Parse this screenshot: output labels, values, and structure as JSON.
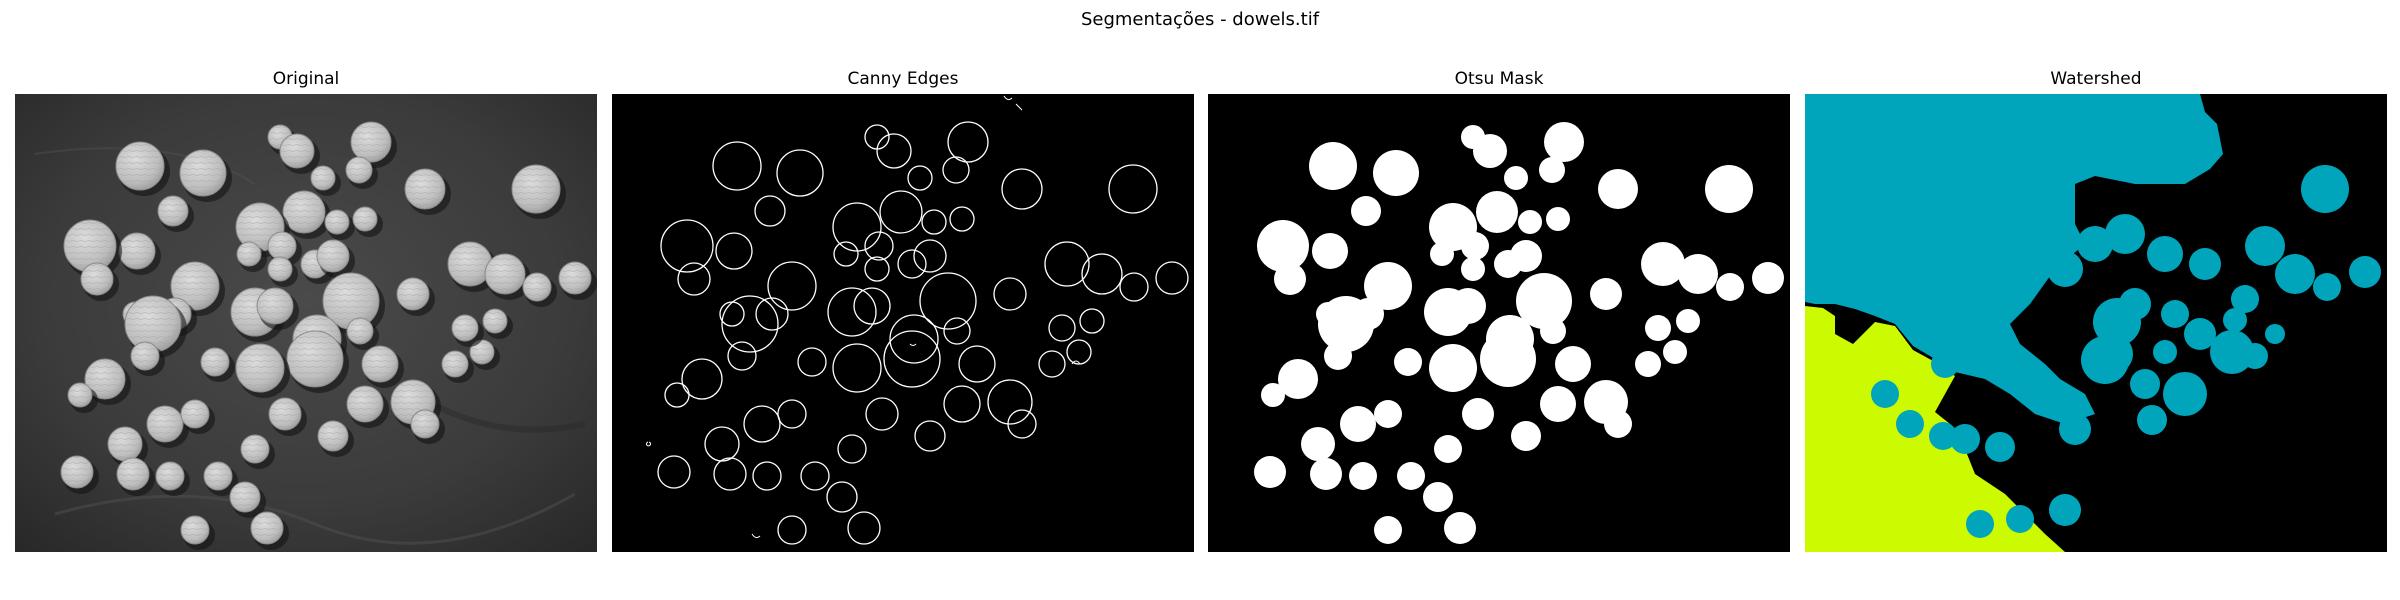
{
  "figure": {
    "suptitle": "Segmentações - dowels.tif",
    "panels": [
      {
        "title": "Original"
      },
      {
        "title": "Canny Edges"
      },
      {
        "title": "Otsu Mask"
      },
      {
        "title": "Watershed"
      }
    ]
  },
  "colors": {
    "background": "#ffffff",
    "original_bg": "#3a3a3a",
    "dowel_face": "#c8c8c8",
    "edge_line": "#ffffff",
    "mask_fg": "#ffffff",
    "mask_bg": "#000000",
    "watershed_cyan": "#00a5bb",
    "watershed_lime": "#ccfa00",
    "watershed_bg": "#000000"
  }
}
